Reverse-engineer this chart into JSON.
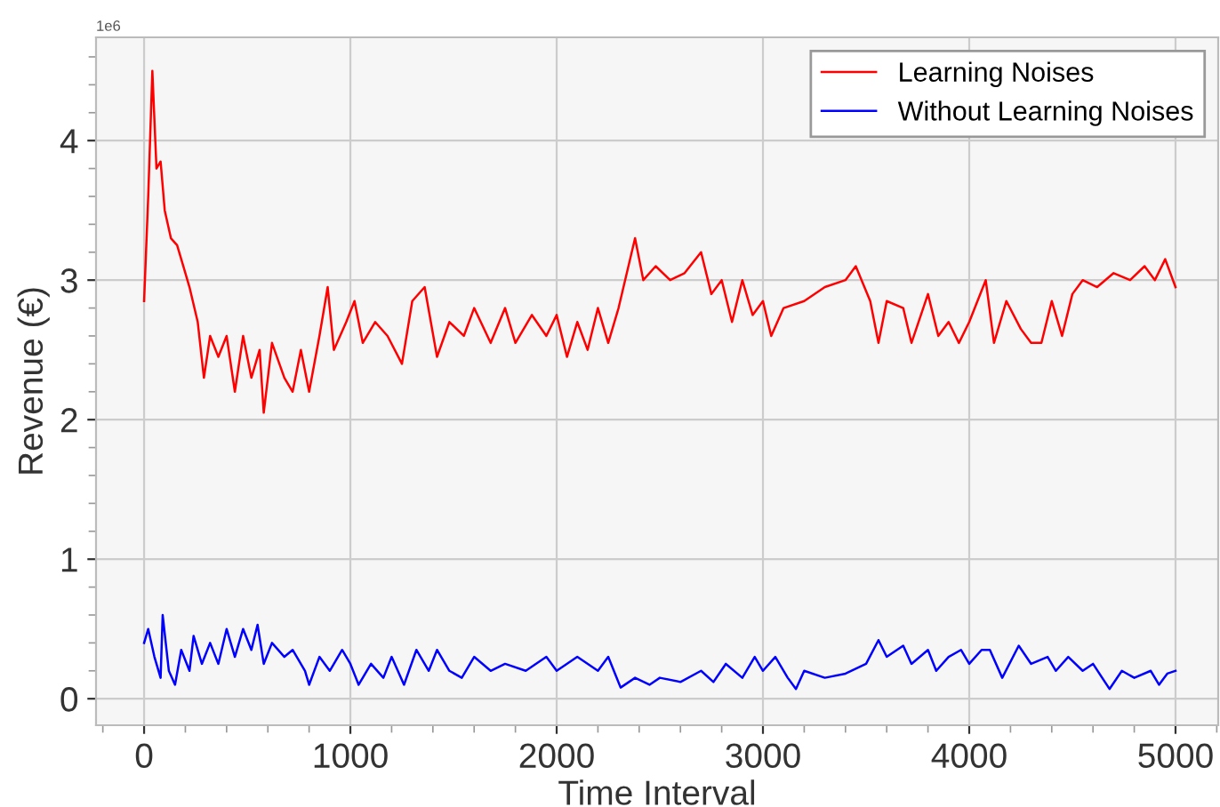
{
  "chart_data": {
    "type": "line",
    "xlabel": "Time Interval",
    "ylabel": "Revenue (€)",
    "annotations": [
      "1e6"
    ],
    "xlim": [
      -233,
      5207
    ],
    "xticks": [
      0,
      1000,
      2000,
      3000,
      4000,
      5000
    ],
    "ylim": [
      -0.19,
      4.74
    ],
    "yticks": [
      0,
      1,
      2,
      3,
      4
    ],
    "grid": true,
    "legend": "top right",
    "marker": "none",
    "line_style": "solid",
    "series": [
      {
        "name": "Learning Noises",
        "color": "#ff0000",
        "x": [
          0,
          20,
          40,
          60,
          80,
          100,
          130,
          160,
          190,
          220,
          260,
          290,
          320,
          360,
          400,
          440,
          480,
          520,
          560,
          580,
          620,
          680,
          720,
          760,
          800,
          850,
          890,
          920,
          980,
          1020,
          1060,
          1120,
          1180,
          1250,
          1300,
          1360,
          1420,
          1480,
          1550,
          1600,
          1680,
          1750,
          1800,
          1880,
          1950,
          2000,
          2050,
          2100,
          2150,
          2200,
          2250,
          2300,
          2340,
          2380,
          2420,
          2480,
          2550,
          2620,
          2700,
          2750,
          2800,
          2850,
          2900,
          2950,
          3000,
          3040,
          3100,
          3200,
          3300,
          3400,
          3450,
          3520,
          3560,
          3600,
          3680,
          3720,
          3800,
          3850,
          3900,
          3950,
          4000,
          4080,
          4120,
          4180,
          4250,
          4300,
          4350,
          4400,
          4450,
          4500,
          4550,
          4620,
          4700,
          4780,
          4850,
          4900,
          4950,
          5000
        ],
        "values": [
          2.85,
          3.6,
          4.5,
          3.8,
          3.85,
          3.5,
          3.3,
          3.25,
          3.1,
          2.95,
          2.7,
          2.3,
          2.6,
          2.45,
          2.6,
          2.2,
          2.6,
          2.3,
          2.5,
          2.05,
          2.55,
          2.3,
          2.2,
          2.5,
          2.2,
          2.6,
          2.95,
          2.5,
          2.7,
          2.85,
          2.55,
          2.7,
          2.6,
          2.4,
          2.85,
          2.95,
          2.45,
          2.7,
          2.6,
          2.8,
          2.55,
          2.8,
          2.55,
          2.75,
          2.6,
          2.75,
          2.45,
          2.7,
          2.5,
          2.8,
          2.55,
          2.8,
          3.05,
          3.3,
          3.0,
          3.1,
          3.0,
          3.05,
          3.2,
          2.9,
          3.0,
          2.7,
          3.0,
          2.75,
          2.85,
          2.6,
          2.8,
          2.85,
          2.95,
          3.0,
          3.1,
          2.85,
          2.55,
          2.85,
          2.8,
          2.55,
          2.9,
          2.6,
          2.7,
          2.55,
          2.7,
          3.0,
          2.55,
          2.85,
          2.65,
          2.55,
          2.55,
          2.85,
          2.6,
          2.9,
          3.0,
          2.95,
          3.05,
          3.0,
          3.1,
          3.0,
          3.15,
          2.95
        ]
      },
      {
        "name": "Without Learning Noises",
        "color": "#0000ff",
        "x": [
          0,
          20,
          50,
          80,
          90,
          120,
          150,
          180,
          220,
          240,
          280,
          320,
          360,
          400,
          440,
          480,
          520,
          550,
          580,
          620,
          680,
          720,
          780,
          800,
          850,
          900,
          960,
          1000,
          1040,
          1100,
          1160,
          1200,
          1260,
          1320,
          1380,
          1420,
          1480,
          1540,
          1600,
          1680,
          1750,
          1850,
          1950,
          2000,
          2100,
          2200,
          2250,
          2310,
          2380,
          2450,
          2500,
          2600,
          2700,
          2760,
          2820,
          2900,
          2960,
          3000,
          3060,
          3120,
          3160,
          3200,
          3300,
          3400,
          3500,
          3560,
          3600,
          3680,
          3720,
          3800,
          3840,
          3900,
          3960,
          4000,
          4060,
          4100,
          4160,
          4240,
          4300,
          4380,
          4420,
          4480,
          4550,
          4600,
          4680,
          4740,
          4800,
          4880,
          4920,
          4960,
          5000
        ],
        "values": [
          0.4,
          0.5,
          0.3,
          0.15,
          0.6,
          0.2,
          0.1,
          0.35,
          0.2,
          0.45,
          0.25,
          0.4,
          0.25,
          0.5,
          0.3,
          0.5,
          0.35,
          0.53,
          0.25,
          0.4,
          0.3,
          0.35,
          0.2,
          0.1,
          0.3,
          0.2,
          0.35,
          0.25,
          0.1,
          0.25,
          0.15,
          0.3,
          0.1,
          0.35,
          0.2,
          0.35,
          0.2,
          0.15,
          0.3,
          0.2,
          0.25,
          0.2,
          0.3,
          0.2,
          0.3,
          0.2,
          0.3,
          0.08,
          0.15,
          0.1,
          0.15,
          0.12,
          0.2,
          0.12,
          0.25,
          0.15,
          0.3,
          0.2,
          0.3,
          0.15,
          0.07,
          0.2,
          0.15,
          0.18,
          0.25,
          0.42,
          0.3,
          0.38,
          0.25,
          0.35,
          0.2,
          0.3,
          0.35,
          0.25,
          0.35,
          0.35,
          0.15,
          0.38,
          0.25,
          0.3,
          0.2,
          0.3,
          0.2,
          0.25,
          0.07,
          0.2,
          0.15,
          0.2,
          0.1,
          0.18,
          0.2
        ]
      }
    ]
  }
}
